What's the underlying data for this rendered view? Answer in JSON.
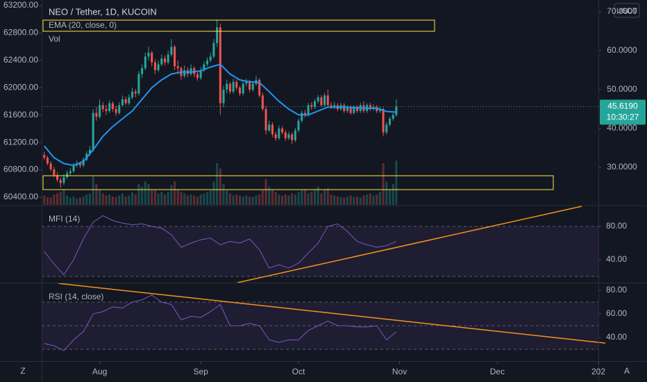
{
  "chart_data": {
    "type": "candlestick",
    "title": "NEO / Tether, 1D, KUCOIN",
    "currency": "USDT",
    "up_color": "#26a69a",
    "down_color": "#ef5350",
    "ohlc": [
      [
        33.2,
        34.0,
        32.0,
        32.5
      ],
      [
        32.5,
        33.0,
        30.6,
        31.0
      ],
      [
        31.0,
        31.6,
        29.0,
        29.5
      ],
      [
        29.5,
        30.2,
        27.5,
        28.0
      ],
      [
        28.0,
        28.8,
        26.2,
        26.8
      ],
      [
        26.8,
        27.4,
        24.8,
        26.0
      ],
      [
        26.0,
        28.2,
        25.5,
        27.5
      ],
      [
        27.5,
        29.2,
        27.0,
        28.5
      ],
      [
        28.5,
        29.8,
        28.0,
        29.0
      ],
      [
        29.0,
        31.2,
        28.6,
        30.5
      ],
      [
        30.5,
        31.8,
        30.0,
        31.0
      ],
      [
        31.0,
        31.5,
        29.8,
        30.5
      ],
      [
        30.5,
        32.6,
        30.1,
        32.0
      ],
      [
        32.0,
        34.2,
        31.6,
        33.5
      ],
      [
        33.5,
        35.5,
        33.0,
        34.5
      ],
      [
        34.5,
        45.0,
        34.0,
        44.0
      ],
      [
        44.0,
        45.5,
        42.0,
        43.0
      ],
      [
        43.0,
        47.5,
        42.5,
        46.0
      ],
      [
        46.0,
        46.8,
        44.2,
        45.0
      ],
      [
        45.0,
        46.0,
        43.5,
        44.5
      ],
      [
        44.5,
        47.2,
        44.0,
        46.5
      ],
      [
        46.5,
        47.0,
        44.3,
        45.0
      ],
      [
        45.0,
        45.8,
        43.2,
        44.0
      ],
      [
        44.0,
        46.8,
        43.6,
        46.0
      ],
      [
        46.0,
        48.5,
        45.5,
        47.5
      ],
      [
        47.5,
        48.2,
        46.0,
        46.5
      ],
      [
        46.5,
        48.8,
        46.0,
        48.0
      ],
      [
        48.0,
        50.5,
        47.5,
        49.5
      ],
      [
        49.5,
        50.2,
        48.0,
        49.0
      ],
      [
        49.0,
        54.8,
        48.5,
        54.0
      ],
      [
        54.0,
        56.5,
        53.0,
        55.5
      ],
      [
        55.5,
        59.5,
        55.0,
        58.5
      ],
      [
        58.5,
        61.0,
        57.5,
        59.5
      ],
      [
        59.5,
        60.0,
        56.0,
        57.0
      ],
      [
        57.0,
        57.8,
        54.0,
        55.0
      ],
      [
        55.0,
        57.5,
        54.5,
        56.5
      ],
      [
        56.5,
        59.0,
        56.0,
        58.0
      ],
      [
        58.0,
        58.8,
        56.2,
        57.0
      ],
      [
        57.0,
        60.0,
        56.5,
        59.0
      ],
      [
        59.0,
        63.0,
        58.5,
        61.0
      ],
      [
        61.0,
        61.5,
        55.0,
        56.0
      ],
      [
        56.0,
        57.5,
        54.0,
        55.5
      ],
      [
        55.5,
        56.0,
        52.5,
        53.5
      ],
      [
        53.5,
        56.2,
        53.0,
        55.0
      ],
      [
        55.0,
        55.8,
        53.2,
        54.0
      ],
      [
        54.0,
        56.5,
        53.5,
        55.5
      ],
      [
        55.5,
        56.0,
        53.2,
        54.0
      ],
      [
        54.0,
        54.6,
        52.3,
        53.0
      ],
      [
        53.0,
        55.8,
        52.5,
        55.0
      ],
      [
        55.0,
        57.2,
        54.5,
        56.5
      ],
      [
        56.5,
        58.3,
        56.0,
        57.5
      ],
      [
        57.5,
        59.5,
        57.0,
        58.5
      ],
      [
        58.5,
        63.0,
        58.0,
        62.0
      ],
      [
        62.0,
        68.0,
        61.0,
        66.0
      ],
      [
        66.0,
        67.0,
        43.5,
        46.5
      ],
      [
        46.5,
        51.0,
        45.5,
        50.0
      ],
      [
        50.0,
        52.5,
        49.0,
        51.5
      ],
      [
        51.5,
        52.0,
        48.8,
        49.5
      ],
      [
        49.5,
        52.8,
        49.0,
        52.0
      ],
      [
        52.0,
        52.6,
        49.8,
        50.5
      ],
      [
        50.5,
        51.0,
        48.3,
        49.0
      ],
      [
        49.0,
        52.2,
        48.5,
        51.5
      ],
      [
        51.5,
        52.8,
        50.8,
        52.0
      ],
      [
        52.0,
        52.5,
        49.3,
        50.0
      ],
      [
        50.0,
        52.2,
        49.5,
        51.5
      ],
      [
        51.5,
        53.5,
        51.0,
        52.5
      ],
      [
        52.5,
        53.0,
        48.0,
        48.5
      ],
      [
        48.5,
        49.2,
        44.5,
        45.0
      ],
      [
        45.0,
        45.8,
        38.5,
        39.5
      ],
      [
        39.5,
        42.0,
        39.0,
        41.0
      ],
      [
        41.0,
        41.6,
        37.8,
        38.5
      ],
      [
        38.5,
        39.2,
        36.8,
        37.5
      ],
      [
        37.5,
        40.8,
        37.0,
        40.0
      ],
      [
        40.0,
        40.6,
        38.4,
        39.0
      ],
      [
        39.0,
        39.6,
        36.8,
        37.5
      ],
      [
        37.5,
        39.2,
        37.0,
        38.5
      ],
      [
        38.5,
        39.0,
        36.0,
        37.0
      ],
      [
        37.0,
        40.2,
        36.5,
        39.5
      ],
      [
        39.5,
        42.6,
        39.0,
        42.0
      ],
      [
        42.0,
        44.6,
        41.5,
        44.0
      ],
      [
        44.0,
        44.8,
        42.8,
        43.5
      ],
      [
        43.5,
        46.6,
        43.0,
        46.0
      ],
      [
        46.0,
        46.8,
        44.8,
        45.5
      ],
      [
        45.5,
        47.6,
        45.0,
        47.0
      ],
      [
        47.0,
        48.6,
        46.5,
        48.0
      ],
      [
        48.0,
        48.6,
        45.5,
        46.0
      ],
      [
        46.0,
        49.2,
        45.6,
        48.5
      ],
      [
        48.5,
        50.0,
        45.5,
        46.0
      ],
      [
        46.0,
        46.8,
        45.0,
        45.5
      ],
      [
        45.5,
        46.8,
        45.0,
        46.0
      ],
      [
        46.0,
        46.5,
        44.4,
        45.0
      ],
      [
        45.0,
        46.6,
        44.5,
        46.0
      ],
      [
        46.0,
        46.5,
        44.0,
        44.5
      ],
      [
        44.5,
        46.0,
        44.0,
        45.5
      ],
      [
        45.5,
        46.0,
        43.5,
        44.0
      ],
      [
        44.0,
        46.0,
        43.6,
        45.5
      ],
      [
        45.5,
        46.0,
        44.0,
        44.5
      ],
      [
        44.5,
        46.6,
        44.0,
        46.0
      ],
      [
        46.0,
        47.0,
        44.0,
        44.5
      ],
      [
        44.5,
        46.5,
        44.0,
        46.0
      ],
      [
        46.0,
        46.6,
        44.5,
        45.0
      ],
      [
        45.0,
        46.2,
        44.6,
        45.5
      ],
      [
        45.5,
        46.0,
        44.0,
        44.5
      ],
      [
        44.5,
        45.6,
        44.0,
        45.0
      ],
      [
        45.0,
        45.4,
        38.0,
        39.0
      ],
      [
        39.0,
        41.6,
        38.5,
        41.0
      ],
      [
        41.0,
        43.0,
        40.5,
        42.5
      ],
      [
        42.5,
        44.0,
        42.0,
        43.5
      ],
      [
        43.5,
        47.5,
        43.0,
        45.619
      ]
    ],
    "volume_label": "Vol",
    "volume_lim": [
      0,
      100
    ],
    "volume": [
      18,
      15,
      14,
      20,
      22,
      25,
      30,
      18,
      14,
      16,
      12,
      14,
      16,
      20,
      22,
      55,
      40,
      30,
      22,
      18,
      20,
      16,
      15,
      18,
      22,
      16,
      18,
      24,
      20,
      40,
      35,
      45,
      40,
      30,
      28,
      22,
      25,
      20,
      25,
      38,
      45,
      30,
      25,
      22,
      18,
      20,
      18,
      16,
      20,
      22,
      25,
      28,
      45,
      80,
      70,
      40,
      28,
      22,
      18,
      20,
      18,
      16,
      18,
      16,
      15,
      18,
      20,
      30,
      50,
      35,
      30,
      25,
      20,
      18,
      20,
      18,
      22,
      20,
      25,
      28,
      30,
      22,
      25,
      28,
      35,
      22,
      30,
      32,
      20,
      18,
      16,
      15,
      14,
      16,
      18,
      15,
      16,
      14,
      18,
      20,
      22,
      18,
      20,
      25,
      80,
      45,
      30,
      40,
      85
    ],
    "ylim": [
      20.36,
      73.04
    ],
    "yticks": [
      {
        "value": 30,
        "label": "30.0000"
      },
      {
        "value": 40,
        "label": "40.0000"
      },
      {
        "value": 50,
        "label": "50.0000"
      },
      {
        "value": 60,
        "label": "60.0000"
      },
      {
        "value": 70,
        "label": "70.0000"
      }
    ],
    "left_axis": {
      "ylim": [
        60288,
        63281
      ],
      "yticks": [
        {
          "value": 60400,
          "label": "60400.00"
        },
        {
          "value": 60800,
          "label": "60800.00"
        },
        {
          "value": 61200,
          "label": "61200.00"
        },
        {
          "value": 61600,
          "label": "61600.00"
        },
        {
          "value": 62000,
          "label": "62000.00"
        },
        {
          "value": 62400,
          "label": "62400.00"
        },
        {
          "value": 62800,
          "label": "62800.00"
        },
        {
          "value": 63200,
          "label": "63200.00"
        }
      ]
    },
    "last_price": {
      "value": 45.619,
      "label": "45.6190"
    },
    "countdown": "10:30:27",
    "xlim": [
      -0.8,
      170
    ],
    "xticks": [
      {
        "value": 17,
        "label": "Aug"
      },
      {
        "value": 48,
        "label": "Sep"
      },
      {
        "value": 78,
        "label": "Oct"
      },
      {
        "value": 109,
        "label": "Nov"
      },
      {
        "value": 139,
        "label": "Dec"
      },
      {
        "value": 170,
        "label": "202"
      }
    ],
    "line_x": [
      0,
      3,
      6,
      9,
      12,
      15,
      18,
      21,
      24,
      27,
      30,
      33,
      36,
      39,
      42,
      45,
      48,
      51,
      54,
      57,
      60,
      63,
      66,
      69,
      72,
      75,
      78,
      81,
      84,
      87,
      90,
      93,
      96,
      99,
      102,
      105,
      108
    ],
    "ema": {
      "name": "EMA (20, close, 0)",
      "color": "#2196f3",
      "values": [
        35.5,
        32.5,
        31.0,
        30.5,
        31.5,
        34.5,
        38.0,
        40.5,
        42.5,
        44.5,
        47.5,
        50.5,
        52.5,
        54.0,
        54.5,
        54.5,
        54.8,
        55.8,
        56.5,
        54.0,
        52.5,
        52.0,
        51.8,
        49.5,
        47.0,
        45.0,
        43.5,
        43.5,
        44.5,
        45.5,
        45.5,
        45.5,
        45.3,
        45.2,
        45.2,
        44.4,
        44.2
      ]
    },
    "indicators": [
      {
        "name": "MFI (14)",
        "color": "#7e57c2",
        "ylim": [
          12.5,
          104.2
        ],
        "yticks": [
          {
            "value": 40,
            "label": "40.00"
          },
          {
            "value": 80,
            "label": "80.00"
          }
        ],
        "bands": [
          80,
          20
        ],
        "values": [
          50,
          35,
          22,
          40,
          65,
          85,
          93,
          87,
          84,
          82,
          83,
          80,
          78,
          70,
          55,
          60,
          64,
          66,
          58,
          62,
          60,
          65,
          52,
          30,
          34,
          30,
          36,
          48,
          60,
          80,
          83,
          74,
          62,
          58,
          55,
          57,
          62
        ]
      },
      {
        "name": "RSI (14, close)",
        "color": "#7e57c2",
        "ylim": [
          20,
          85.9
        ],
        "yticks": [
          {
            "value": 40,
            "label": "40.00"
          },
          {
            "value": 60,
            "label": "60.00"
          },
          {
            "value": 80,
            "label": "80.00"
          }
        ],
        "bands": [
          70,
          50,
          30
        ],
        "values": [
          35,
          33,
          29,
          38,
          45,
          60,
          62,
          66,
          65,
          70,
          72,
          76,
          70,
          68,
          55,
          58,
          57,
          62,
          68,
          50,
          50,
          52,
          50,
          38,
          36,
          38,
          38,
          46,
          50,
          54,
          50,
          50,
          49,
          49,
          50,
          38,
          45
        ]
      }
    ],
    "toolbar": [
      "Z",
      "A"
    ]
  }
}
